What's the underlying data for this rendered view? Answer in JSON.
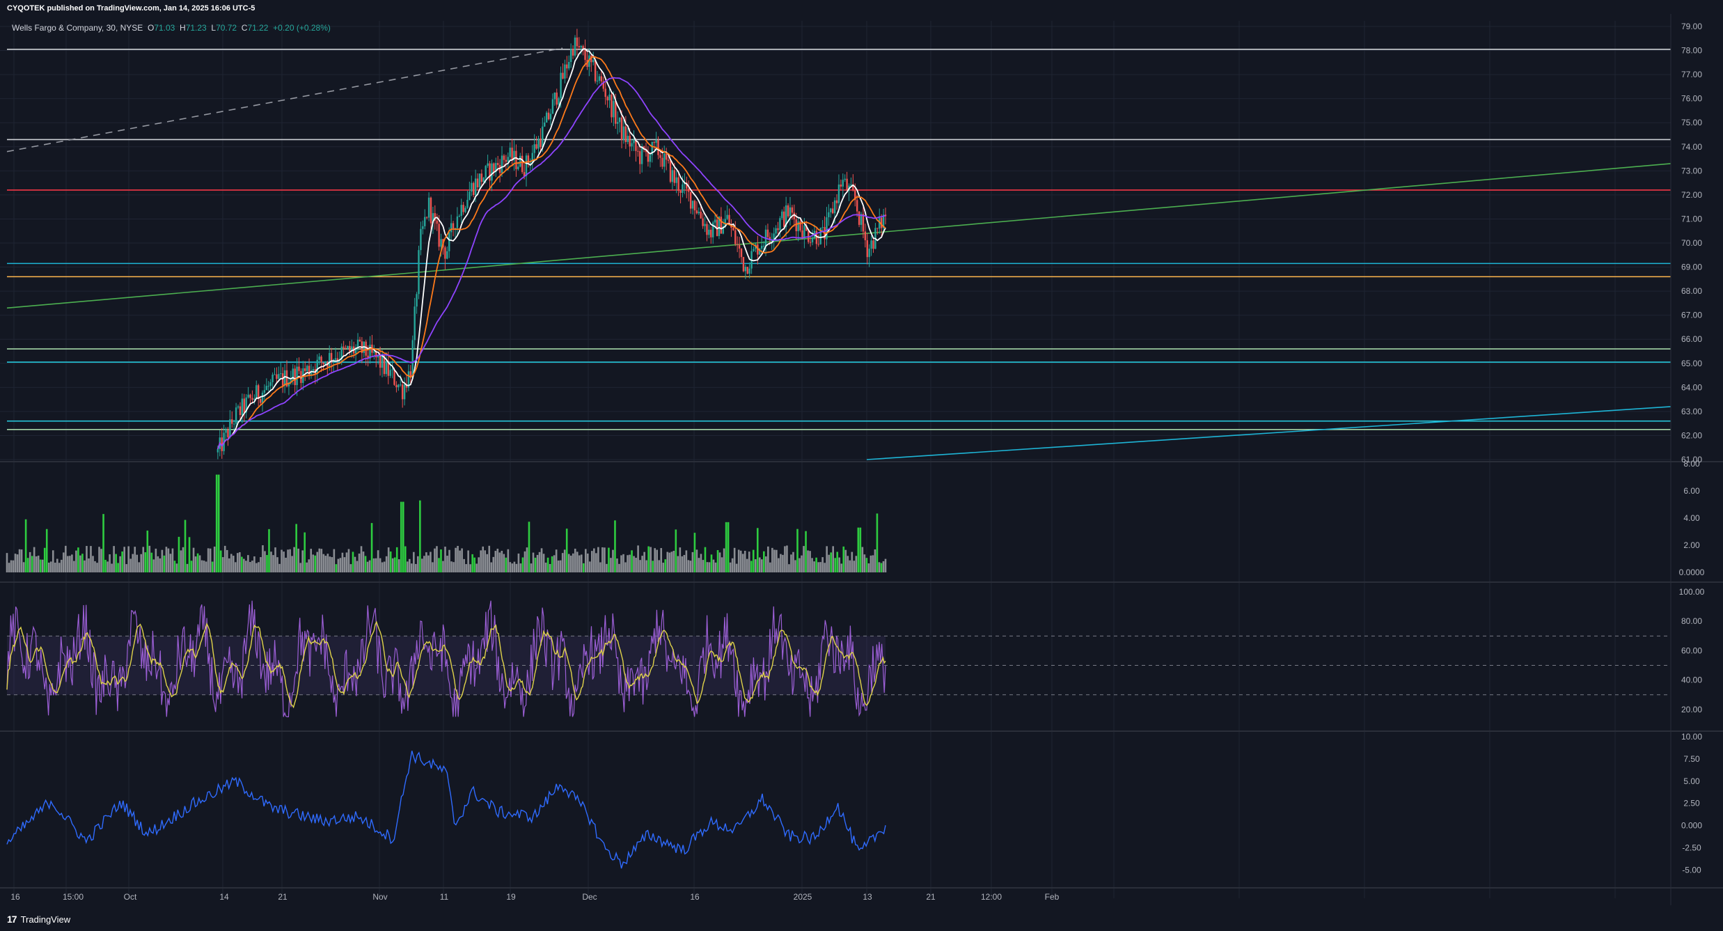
{
  "header": {
    "publisher": "CYQOTEK published on TradingView.com, Jan 14, 2025 16:06 UTC-5"
  },
  "legend": {
    "symbol": "Wells Fargo & Company, 30, NYSE",
    "open_label": "O",
    "open": "71.03",
    "high_label": "H",
    "high": "71.23",
    "low_label": "L",
    "low": "70.72",
    "close_label": "C",
    "close": "71.22",
    "change": "+0.20 (+0.28%)"
  },
  "footer": {
    "brand": "TradingView"
  },
  "colors": {
    "background": "#131722",
    "up": "#26a69a",
    "down": "#ef5350",
    "sma_fast": "#ffffff",
    "sma_mid": "#ff7a1a",
    "sma_slow": "#8e44ff",
    "trend_green": "#4caf50",
    "trend_cyan": "#1eb5d6",
    "rsi": "#9c5fd6",
    "rsi_ma": "#e0d34a",
    "osc": "#2f6bff"
  },
  "chart_data": [
    {
      "type": "candlestick",
      "title": "Wells Fargo & Company, 30, NYSE",
      "ylim": [
        61,
        79
      ],
      "yticks": [
        "79.00",
        "78.00",
        "77.00",
        "76.00",
        "75.00",
        "74.00",
        "73.00",
        "72.00",
        "71.00",
        "70.00",
        "69.00",
        "68.00",
        "67.00",
        "66.00",
        "65.00",
        "64.00",
        "63.00",
        "62.00",
        "61.00"
      ],
      "xticks": [
        "16",
        "15:00",
        "Oct",
        "14",
        "21",
        "Nov",
        "11",
        "19",
        "Dec",
        "16",
        "2025",
        "13",
        "21",
        "12:00",
        "Feb"
      ],
      "price_path": [
        {
          "t": 0.24,
          "p": 61.3
        },
        {
          "t": 0.26,
          "p": 62.8
        },
        {
          "t": 0.28,
          "p": 63.6
        },
        {
          "t": 0.31,
          "p": 64.3
        },
        {
          "t": 0.34,
          "p": 64.7
        },
        {
          "t": 0.37,
          "p": 65.3
        },
        {
          "t": 0.4,
          "p": 65.6
        },
        {
          "t": 0.42,
          "p": 65.2
        },
        {
          "t": 0.44,
          "p": 64.4
        },
        {
          "t": 0.45,
          "p": 63.9
        },
        {
          "t": 0.46,
          "p": 64.8
        },
        {
          "t": 0.47,
          "p": 70.0
        },
        {
          "t": 0.48,
          "p": 71.6
        },
        {
          "t": 0.49,
          "p": 70.3
        },
        {
          "t": 0.5,
          "p": 69.6
        },
        {
          "t": 0.51,
          "p": 71.0
        },
        {
          "t": 0.53,
          "p": 72.4
        },
        {
          "t": 0.55,
          "p": 73.0
        },
        {
          "t": 0.57,
          "p": 73.6
        },
        {
          "t": 0.59,
          "p": 73.2
        },
        {
          "t": 0.61,
          "p": 74.6
        },
        {
          "t": 0.63,
          "p": 76.6
        },
        {
          "t": 0.645,
          "p": 78.3
        },
        {
          "t": 0.66,
          "p": 77.6
        },
        {
          "t": 0.68,
          "p": 76.4
        },
        {
          "t": 0.7,
          "p": 74.6
        },
        {
          "t": 0.72,
          "p": 73.6
        },
        {
          "t": 0.74,
          "p": 73.9
        },
        {
          "t": 0.76,
          "p": 72.6
        },
        {
          "t": 0.78,
          "p": 71.8
        },
        {
          "t": 0.8,
          "p": 70.4
        },
        {
          "t": 0.82,
          "p": 71.0
        },
        {
          "t": 0.84,
          "p": 69.0
        },
        {
          "t": 0.855,
          "p": 69.9
        },
        {
          "t": 0.87,
          "p": 70.5
        },
        {
          "t": 0.89,
          "p": 71.3
        },
        {
          "t": 0.91,
          "p": 70.4
        },
        {
          "t": 0.93,
          "p": 70.3
        },
        {
          "t": 0.95,
          "p": 72.6
        },
        {
          "t": 0.965,
          "p": 71.8
        },
        {
          "t": 0.98,
          "p": 69.7
        },
        {
          "t": 1.0,
          "p": 71.2
        }
      ],
      "horizontal_levels": [
        {
          "price": 78.05,
          "color": "#cfd2d6"
        },
        {
          "price": 74.3,
          "color": "#cfd2d6"
        },
        {
          "price": 72.2,
          "color": "#f23645"
        },
        {
          "price": 69.15,
          "color": "#1eb5d6"
        },
        {
          "price": 68.6,
          "color": "#ffb74d"
        },
        {
          "price": 65.6,
          "color": "#a5d6a7"
        },
        {
          "price": 65.05,
          "color": "#26c6da"
        },
        {
          "price": 62.6,
          "color": "#26c6da"
        },
        {
          "price": 62.25,
          "color": "#a5d6a7"
        }
      ]
    },
    {
      "type": "bar",
      "title": "",
      "ylim": [
        0,
        8
      ],
      "yticks": [
        "8.00",
        "6.00",
        "4.00",
        "2.00",
        "0.0000"
      ],
      "peaks": [
        {
          "t": 0.11,
          "v": 4.3
        },
        {
          "t": 0.24,
          "v": 7.2
        },
        {
          "t": 0.45,
          "v": 5.2
        },
        {
          "t": 0.47,
          "v": 5.3
        },
        {
          "t": 0.82,
          "v": 3.7
        },
        {
          "t": 0.97,
          "v": 3.3
        }
      ]
    },
    {
      "type": "line",
      "title": "",
      "ylim": [
        10,
        100
      ],
      "yticks": [
        "100.00",
        "80.00",
        "60.00",
        "40.00",
        "20.00"
      ],
      "bands": [
        70,
        50,
        30
      ]
    },
    {
      "type": "line",
      "title": "",
      "ylim": [
        -6,
        10
      ],
      "yticks": [
        "10.00",
        "7.50",
        "5.00",
        "2.50",
        "0.000",
        "-2.50",
        "-5.00"
      ],
      "path": [
        {
          "t": 0.0,
          "v": -2.0
        },
        {
          "t": 0.05,
          "v": 2.8
        },
        {
          "t": 0.09,
          "v": -1.8
        },
        {
          "t": 0.13,
          "v": 2.6
        },
        {
          "t": 0.16,
          "v": -1.0
        },
        {
          "t": 0.21,
          "v": 2.3
        },
        {
          "t": 0.26,
          "v": 5.0
        },
        {
          "t": 0.3,
          "v": 2.0
        },
        {
          "t": 0.36,
          "v": 0.5
        },
        {
          "t": 0.4,
          "v": 1.0
        },
        {
          "t": 0.44,
          "v": -1.5
        },
        {
          "t": 0.46,
          "v": 8.0
        },
        {
          "t": 0.5,
          "v": 6.0
        },
        {
          "t": 0.51,
          "v": 0.0
        },
        {
          "t": 0.53,
          "v": 3.8
        },
        {
          "t": 0.56,
          "v": 1.5
        },
        {
          "t": 0.6,
          "v": 1.0
        },
        {
          "t": 0.63,
          "v": 4.8
        },
        {
          "t": 0.66,
          "v": 1.5
        },
        {
          "t": 0.68,
          "v": -2.5
        },
        {
          "t": 0.7,
          "v": -4.3
        },
        {
          "t": 0.73,
          "v": -1.0
        },
        {
          "t": 0.77,
          "v": -2.8
        },
        {
          "t": 0.8,
          "v": 0.3
        },
        {
          "t": 0.83,
          "v": -0.5
        },
        {
          "t": 0.86,
          "v": 3.0
        },
        {
          "t": 0.89,
          "v": -1.2
        },
        {
          "t": 0.92,
          "v": -1.5
        },
        {
          "t": 0.945,
          "v": 2.4
        },
        {
          "t": 0.97,
          "v": -3.2
        },
        {
          "t": 1.0,
          "v": 0.0
        }
      ]
    }
  ]
}
